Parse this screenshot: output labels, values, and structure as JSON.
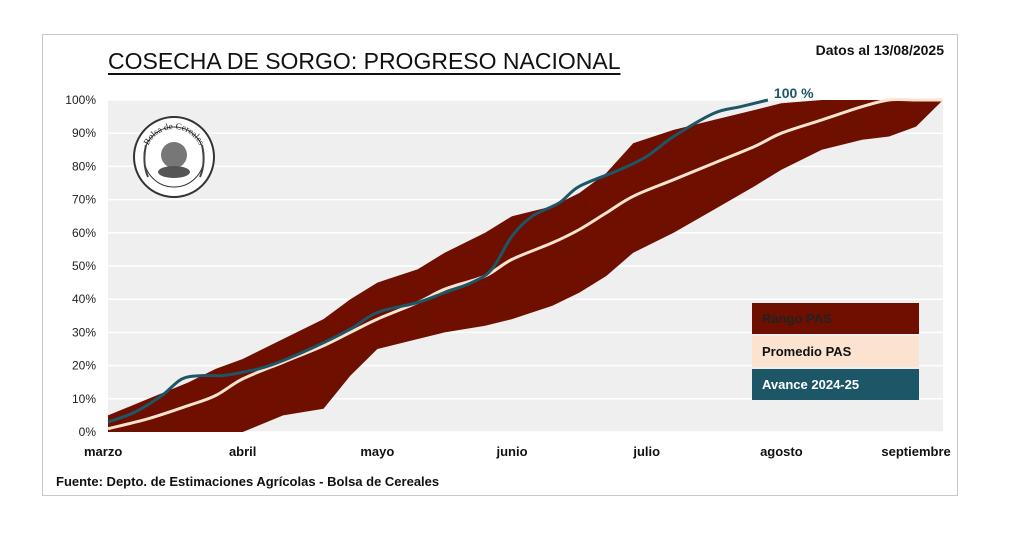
{
  "header": {
    "title": "COSECHA DE SORGO: PROGRESO NACIONAL",
    "date": "Datos al 13/08/2025"
  },
  "footer": {
    "source": "Fuente: Depto. de Estimaciones Agrícolas - Bolsa de Cereales"
  },
  "logo": {
    "text": "Bolsa de Cereales"
  },
  "colors": {
    "range": "#6e0f00",
    "average": "#fbe3cf",
    "progress": "#1d5667",
    "plot_bg": "#efefef",
    "grid": "#ffffff"
  },
  "chart_data": {
    "type": "area",
    "title": "COSECHA DE SORGO: PROGRESO NACIONAL",
    "xlabel": "",
    "ylabel": "",
    "x_tick_labels": [
      "marzo",
      "abril",
      "mayo",
      "junio",
      "julio",
      "agosto",
      "septiembre"
    ],
    "y_tick_labels": [
      "0%",
      "10%",
      "20%",
      "30%",
      "40%",
      "50%",
      "60%",
      "70%",
      "80%",
      "90%",
      "100%"
    ],
    "ylim": [
      0,
      100
    ],
    "x_unit": "months since start of marzo",
    "xlim": [
      0,
      6.2
    ],
    "grid": true,
    "legend_position": "bottom-right",
    "end_label": "100 %",
    "series": [
      {
        "name": "Rango PAS",
        "kind": "band",
        "x": [
          0,
          0.3,
          0.6,
          0.8,
          1.0,
          1.3,
          1.6,
          1.8,
          2.0,
          2.3,
          2.5,
          2.8,
          3.0,
          3.3,
          3.5,
          3.7,
          3.9,
          4.2,
          4.5,
          4.8,
          5.0,
          5.3,
          5.6,
          5.8,
          6.0,
          6.2
        ],
        "upper": [
          5,
          10,
          15,
          19,
          22,
          28,
          34,
          40,
          45,
          49,
          54,
          60,
          65,
          68,
          72,
          78,
          87,
          91,
          94,
          97,
          99,
          100,
          100,
          100,
          100,
          100
        ],
        "lower": [
          0,
          0,
          0,
          0,
          0,
          5,
          7,
          17,
          25,
          28,
          30,
          32,
          34,
          38,
          42,
          47,
          54,
          60,
          67,
          74,
          79,
          85,
          88,
          89,
          92,
          100
        ]
      },
      {
        "name": "Promedio PAS",
        "kind": "line",
        "x": [
          0,
          0.3,
          0.6,
          0.8,
          1.0,
          1.3,
          1.6,
          1.8,
          2.0,
          2.3,
          2.5,
          2.8,
          3.0,
          3.3,
          3.5,
          3.7,
          3.9,
          4.2,
          4.5,
          4.8,
          5.0,
          5.3,
          5.6,
          5.8,
          6.0,
          6.2
        ],
        "values": [
          1,
          4,
          8,
          11,
          16,
          21,
          26,
          30,
          34,
          39,
          43,
          47,
          52,
          57,
          61,
          66,
          71,
          76,
          81,
          86,
          90,
          94,
          98,
          100,
          100,
          100
        ]
      },
      {
        "name": "Avance 2024-25",
        "kind": "line",
        "x": [
          0,
          0.2,
          0.4,
          0.55,
          0.7,
          0.85,
          1.0,
          1.2,
          1.5,
          1.8,
          2.0,
          2.3,
          2.5,
          2.7,
          2.85,
          3.0,
          3.15,
          3.35,
          3.5,
          3.8,
          4.0,
          4.2,
          4.5,
          4.7,
          4.9
        ],
        "values": [
          3,
          6,
          11,
          16,
          17,
          17,
          18,
          20,
          25,
          31,
          36,
          39,
          42,
          45,
          49,
          59,
          65,
          69,
          74,
          79,
          83,
          89,
          96,
          98,
          100
        ]
      }
    ]
  }
}
